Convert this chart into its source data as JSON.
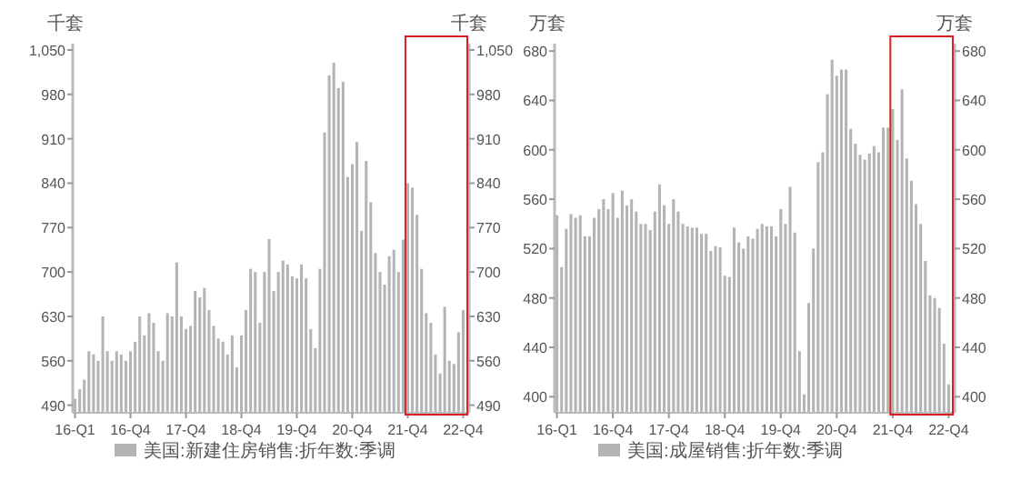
{
  "chart_data": [
    {
      "type": "bar",
      "ylabel": "千套",
      "y2label": "千套",
      "legend": "bottom",
      "grid": false,
      "categories": [
        "16-Q1",
        null,
        null,
        null,
        null,
        null,
        null,
        null,
        null,
        null,
        null,
        null,
        "16-Q4",
        null,
        null,
        null,
        null,
        null,
        null,
        null,
        null,
        null,
        null,
        null,
        "17-Q4",
        null,
        null,
        null,
        null,
        null,
        null,
        null,
        null,
        null,
        null,
        null,
        "18-Q4",
        null,
        null,
        null,
        null,
        null,
        null,
        null,
        null,
        null,
        null,
        null,
        "19-Q4",
        null,
        null,
        null,
        null,
        null,
        null,
        null,
        null,
        null,
        null,
        null,
        "20-Q4",
        null,
        null,
        null,
        null,
        null,
        null,
        null,
        null,
        null,
        null,
        null,
        "21-Q4",
        null,
        null,
        null,
        null,
        null,
        null,
        null,
        null,
        null,
        null,
        null,
        "22-Q4"
      ],
      "series": [
        {
          "name": "美国:新建住房销售:折年数:季调",
          "color": "#b4b4b4",
          "values": [
            500,
            515,
            530,
            575,
            570,
            560,
            630,
            575,
            560,
            575,
            570,
            560,
            575,
            590,
            630,
            600,
            635,
            620,
            575,
            560,
            635,
            630,
            715,
            630,
            610,
            615,
            670,
            660,
            675,
            640,
            615,
            595,
            590,
            570,
            600,
            550,
            600,
            640,
            705,
            700,
            620,
            700,
            752,
            670,
            700,
            718,
            712,
            693,
            690,
            712,
            690,
            610,
            580,
            705,
            920,
            1010,
            1030,
            990,
            1000,
            850,
            870,
            905,
            765,
            875,
            810,
            730,
            700,
            680,
            725,
            735,
            700,
            751,
            840,
            833,
            790,
            705,
            635,
            620,
            570,
            540,
            645,
            560,
            555,
            605,
            640
          ]
        }
      ],
      "ylim": [
        478,
        1060
      ],
      "yticks": [
        490,
        560,
        630,
        700,
        770,
        840,
        910,
        980,
        {
          "value": 1050,
          "label": "1,050"
        }
      ],
      "y2lim": [
        478,
        1060
      ],
      "y2ticks": [
        490,
        560,
        630,
        700,
        770,
        840,
        910,
        980,
        {
          "value": 1050,
          "label": "1,050"
        }
      ]
    },
    {
      "type": "bar",
      "ylabel": "万套",
      "y2label": "万套",
      "legend": "bottom",
      "grid": false,
      "categories": [
        "16-Q1",
        null,
        null,
        null,
        null,
        null,
        null,
        null,
        null,
        null,
        null,
        null,
        "16-Q4",
        null,
        null,
        null,
        null,
        null,
        null,
        null,
        null,
        null,
        null,
        null,
        "17-Q4",
        null,
        null,
        null,
        null,
        null,
        null,
        null,
        null,
        null,
        null,
        null,
        "18-Q4",
        null,
        null,
        null,
        null,
        null,
        null,
        null,
        null,
        null,
        null,
        null,
        "19-Q4",
        null,
        null,
        null,
        null,
        null,
        null,
        null,
        null,
        null,
        null,
        null,
        "20-Q4",
        null,
        null,
        null,
        null,
        null,
        null,
        null,
        null,
        null,
        null,
        null,
        "21-Q4",
        null,
        null,
        null,
        null,
        null,
        null,
        null,
        null,
        null,
        null,
        null,
        "22-Q4"
      ],
      "series": [
        {
          "name": "美国:成屋销售:折年数:季调",
          "color": "#b4b4b4",
          "values": [
            547,
            505,
            536,
            548,
            545,
            547,
            530,
            530,
            545,
            552,
            560,
            552,
            565,
            545,
            567,
            555,
            560,
            550,
            540,
            540,
            535,
            550,
            572,
            555,
            540,
            560,
            550,
            540,
            538,
            537,
            537,
            532,
            532,
            518,
            522,
            521,
            498,
            497,
            537,
            525,
            520,
            530,
            528,
            536,
            540,
            538,
            538,
            530,
            552,
            540,
            570,
            533,
            437,
            402,
            476,
            520,
            590,
            598,
            645,
            673,
            660,
            665,
            665,
            617,
            605,
            596,
            592,
            597,
            603,
            598,
            618,
            618,
            633,
            608,
            649,
            593,
            575,
            556,
            540,
            510,
            482,
            480,
            472,
            443,
            410
          ]
        }
      ],
      "ylim": [
        387,
        686
      ],
      "yticks": [
        400,
        440,
        480,
        520,
        560,
        600,
        640,
        680
      ],
      "y2lim": [
        387,
        686
      ],
      "y2ticks": [
        400,
        440,
        480,
        520,
        560,
        600,
        640,
        680
      ]
    }
  ]
}
